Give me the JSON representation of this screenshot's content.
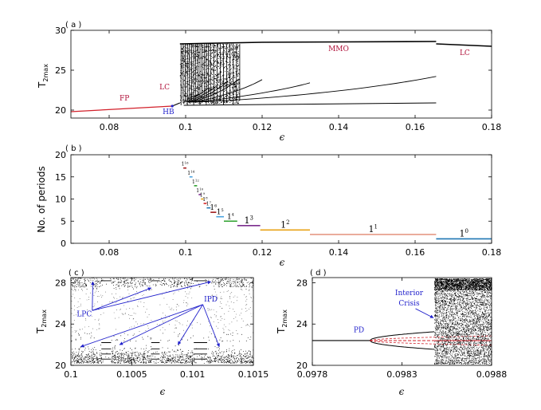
{
  "chart_data": [
    {
      "panel": "( a )",
      "type": "scatter",
      "xlabel": "ϵ",
      "ylabel": "T2max",
      "xlim": [
        0.07,
        0.18
      ],
      "ylim": [
        19,
        30
      ],
      "xticks": [
        "0.08",
        "0.1",
        "0.12",
        "0.14",
        "0.16",
        "0.18"
      ],
      "yticks": [
        "20",
        "25",
        "30"
      ],
      "branches": {
        "FP": {
          "x": [
            0.07,
            0.0965
          ],
          "y": [
            19.8,
            20.5
          ]
        },
        "LC_pre": {
          "x": [
            0.0965,
            0.0985
          ],
          "y": [
            20.5,
            20.9
          ]
        },
        "MMO_upper": {
          "x": [
            0.0985,
            0.1655
          ],
          "y": [
            28.2,
            28.6
          ]
        },
        "LC_post": {
          "x": [
            0.1655,
            0.18
          ],
          "y": [
            28.3,
            28.0
          ]
        }
      },
      "labels": [
        {
          "text": "FP",
          "x": 0.084,
          "y": 21.2,
          "color": "#b0123a"
        },
        {
          "text": "LC",
          "x": 0.0945,
          "y": 22.6,
          "color": "#b0123a"
        },
        {
          "text": "HB",
          "x": 0.0955,
          "y": 19.5,
          "color": "#2222cc"
        },
        {
          "text": "MMO",
          "x": 0.14,
          "y": 27.4,
          "color": "#b0123a"
        },
        {
          "text": "LC",
          "x": 0.173,
          "y": 26.9,
          "color": "#b0123a"
        }
      ]
    },
    {
      "panel": "( b )",
      "type": "line",
      "xlabel": "ϵ",
      "ylabel": "No. of periods",
      "xlim": [
        0.07,
        0.18
      ],
      "ylim": [
        0,
        20
      ],
      "xticks": [
        "0.08",
        "0.1",
        "0.12",
        "0.14",
        "0.16",
        "0.18"
      ],
      "yticks": [
        "0",
        "5",
        "10",
        "15",
        "20"
      ],
      "plateaus": [
        {
          "label": "1",
          "exp": "0",
          "x": [
            0.1655,
            0.18
          ],
          "y": 1,
          "color": "#1f77b4"
        },
        {
          "label": "1",
          "exp": "1",
          "x": [
            0.1325,
            0.1655
          ],
          "y": 2,
          "color": "#e59a85"
        },
        {
          "label": "1",
          "exp": "2",
          "x": [
            0.1195,
            0.1325
          ],
          "y": 3,
          "color": "#e8a317"
        },
        {
          "label": "1",
          "exp": "3",
          "x": [
            0.1135,
            0.1195
          ],
          "y": 4,
          "color": "#7b2d8e"
        },
        {
          "label": "1",
          "exp": "4",
          "x": [
            0.11,
            0.1135
          ],
          "y": 5,
          "color": "#2ca02c"
        },
        {
          "label": "1",
          "exp": "5",
          "x": [
            0.108,
            0.11
          ],
          "y": 6,
          "color": "#4aa3df"
        },
        {
          "label": "1",
          "exp": "6",
          "x": [
            0.1065,
            0.108
          ],
          "y": 7,
          "color": "#a01b1b"
        },
        {
          "label": "1",
          "exp": "7",
          "x": [
            0.1055,
            0.1065
          ],
          "y": 8,
          "color": "#1f77b4"
        },
        {
          "label": "1",
          "exp": "8",
          "x": [
            0.1047,
            0.1055
          ],
          "y": 9,
          "color": "#d62728"
        },
        {
          "label": "1",
          "exp": "9",
          "x": [
            0.104,
            0.1047
          ],
          "y": 10,
          "color": "#e8a317"
        },
        {
          "label": "1",
          "exp": "10",
          "x": [
            0.1034,
            0.104
          ],
          "y": 11,
          "color": "#7b2d8e"
        },
        {
          "label": "1",
          "exp": "12",
          "x": [
            0.1022,
            0.103
          ],
          "y": 13,
          "color": "#2ca02c"
        },
        {
          "label": "1",
          "exp": "14",
          "x": [
            0.101,
            0.1018
          ],
          "y": 15,
          "color": "#4aa3df"
        },
        {
          "label": "1",
          "exp": "16",
          "x": [
            0.0994,
            0.1002
          ],
          "y": 17,
          "color": "#a01b1b"
        }
      ]
    },
    {
      "panel": "( c )",
      "type": "scatter",
      "xlabel": "ϵ",
      "ylabel": "T2max",
      "xlim": [
        0.1,
        0.1015
      ],
      "ylim": [
        20,
        28.5
      ],
      "xticks": [
        "0.1",
        "0.1005",
        "0.101",
        "0.1015"
      ],
      "yticks": [
        "20",
        "24",
        "28"
      ],
      "windows_x": [
        [
          0.10025,
          0.10033
        ],
        [
          0.10066,
          0.10073
        ],
        [
          0.10101,
          0.10112
        ]
      ],
      "labels": [
        {
          "text": "LPC",
          "x": 0.10011,
          "y": 25.0,
          "color": "#2222cc"
        },
        {
          "text": "IPD",
          "x": 0.10115,
          "y": 26.2,
          "color": "#2222cc"
        }
      ]
    },
    {
      "panel": "( d )",
      "type": "scatter",
      "xlabel": "ϵ",
      "ylabel": "T2max",
      "xlim": [
        0.0978,
        0.0988
      ],
      "ylim": [
        20,
        28.5
      ],
      "xticks": [
        "0.0978",
        "0.0983",
        "0.0988"
      ],
      "yticks": [
        "20",
        "24",
        "28"
      ],
      "period_doubling_start": 0.09812,
      "crisis_x": 0.09848,
      "labels": [
        {
          "text": "PD",
          "x": 0.09806,
          "y": 23.2,
          "color": "#2222cc"
        },
        {
          "text": "Interior",
          "x": 0.09834,
          "y": 26.8,
          "color": "#2222cc"
        },
        {
          "text": "Crisis",
          "x": 0.09834,
          "y": 25.8,
          "color": "#2222cc"
        }
      ]
    }
  ]
}
